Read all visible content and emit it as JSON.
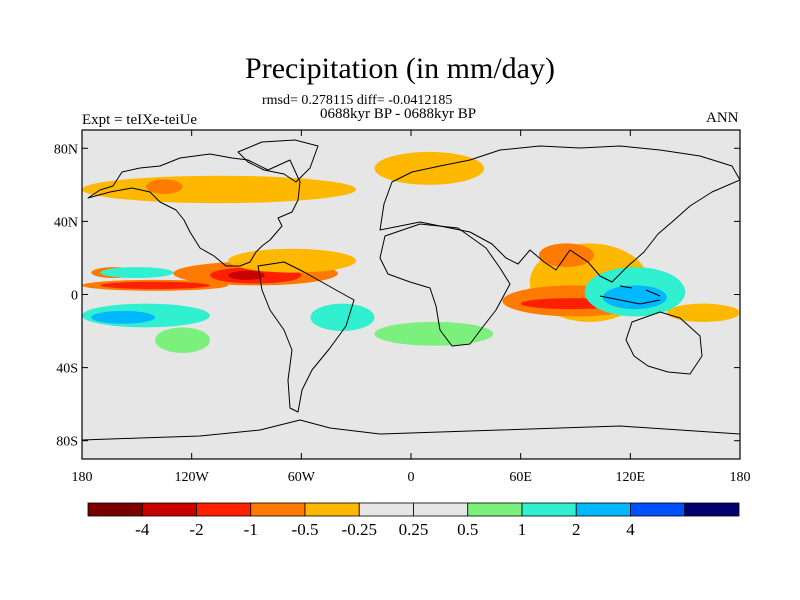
{
  "header": {
    "title": "Precipitation (in mm/day)",
    "stats": "rmsd= 0.278115 diff= -0.0412185",
    "period": "0688kyr BP - 0688kyr BP",
    "experiment": "Expt = teIXe-teiUe",
    "season": "ANN"
  },
  "axes": {
    "lat_ticks": [
      "80N",
      "40N",
      "0",
      "40S",
      "80S"
    ],
    "lon_ticks": [
      "180",
      "120W",
      "60W",
      "0",
      "60E",
      "120E",
      "180"
    ]
  },
  "colorbar": {
    "colors": [
      "#7a0000",
      "#c80000",
      "#ff2000",
      "#ff7a00",
      "#ffb800",
      "#e6e6e6",
      "#e6e6e6",
      "#7cf07c",
      "#30f0d0",
      "#00b8ff",
      "#0050ff",
      "#00006e"
    ],
    "labels": [
      "-4",
      "-2",
      "-1",
      "-0.5",
      "-0.25",
      "0.25",
      "0.5",
      "1",
      "2",
      "4"
    ]
  },
  "chart_data": {
    "type": "heatmap",
    "title": "Precipitation (in mm/day)",
    "variable": "precipitation difference",
    "units": "mm/day",
    "season": "ANN",
    "levels": [
      -4,
      -2,
      -1,
      -0.5,
      -0.25,
      0.25,
      0.5,
      1,
      2,
      4
    ],
    "lon_range": [
      -180,
      180
    ],
    "lat_range": [
      -90,
      90
    ],
    "regions": [
      {
        "sign": "neg",
        "level": -0.5,
        "lon": [
          -175,
          -150
        ],
        "lat": [
          9,
          15
        ]
      },
      {
        "sign": "neg",
        "level": -0.5,
        "lon": [
          -130,
          -40
        ],
        "lat": [
          5,
          18
        ]
      },
      {
        "sign": "neg",
        "level": -1,
        "lon": [
          -110,
          -60
        ],
        "lat": [
          6,
          15
        ]
      },
      {
        "sign": "neg",
        "level": -2,
        "lon": [
          -100,
          -80
        ],
        "lat": [
          8,
          13
        ]
      },
      {
        "sign": "neg",
        "level": -0.5,
        "lon": [
          -180,
          -100
        ],
        "lat": [
          2,
          8
        ]
      },
      {
        "sign": "neg",
        "level": -1,
        "lon": [
          -170,
          -110
        ],
        "lat": [
          3,
          7
        ]
      },
      {
        "sign": "neg",
        "level": -0.25,
        "lon": [
          -100,
          -30
        ],
        "lat": [
          12,
          25
        ]
      },
      {
        "sign": "neg",
        "level": -0.25,
        "lon": [
          -180,
          -30
        ],
        "lat": [
          50,
          65
        ]
      },
      {
        "sign": "neg",
        "level": -0.5,
        "lon": [
          -145,
          -125
        ],
        "lat": [
          55,
          63
        ]
      },
      {
        "sign": "neg",
        "level": -0.25,
        "lon": [
          -20,
          40
        ],
        "lat": [
          60,
          78
        ]
      },
      {
        "sign": "neg",
        "level": -0.25,
        "lon": [
          65,
          130
        ],
        "lat": [
          -15,
          28
        ]
      },
      {
        "sign": "neg",
        "level": -0.5,
        "lon": [
          50,
          130
        ],
        "lat": [
          -12,
          5
        ]
      },
      {
        "sign": "neg",
        "level": -1,
        "lon": [
          60,
          115
        ],
        "lat": [
          -8,
          -2
        ]
      },
      {
        "sign": "neg",
        "level": -0.5,
        "lon": [
          70,
          100
        ],
        "lat": [
          15,
          28
        ]
      },
      {
        "sign": "neg",
        "level": -0.25,
        "lon": [
          140,
          180
        ],
        "lat": [
          -15,
          -5
        ]
      },
      {
        "sign": "pos",
        "level": 0.5,
        "lon": [
          -180,
          -110
        ],
        "lat": [
          -18,
          -5
        ]
      },
      {
        "sign": "pos",
        "level": 1,
        "lon": [
          -175,
          -140
        ],
        "lat": [
          -16,
          -9
        ]
      },
      {
        "sign": "pos",
        "level": 0.25,
        "lon": [
          -140,
          -110
        ],
        "lat": [
          -32,
          -18
        ]
      },
      {
        "sign": "pos",
        "level": 0.5,
        "lon": [
          -170,
          -130
        ],
        "lat": [
          9,
          15
        ]
      },
      {
        "sign": "pos",
        "level": 0.5,
        "lon": [
          -55,
          -20
        ],
        "lat": [
          -20,
          -5
        ]
      },
      {
        "sign": "pos",
        "level": 0.25,
        "lon": [
          -20,
          45
        ],
        "lat": [
          -28,
          -15
        ]
      },
      {
        "sign": "pos",
        "level": 0.5,
        "lon": [
          95,
          150
        ],
        "lat": [
          -12,
          15
        ]
      },
      {
        "sign": "pos",
        "level": 1,
        "lon": [
          105,
          140
        ],
        "lat": [
          -8,
          5
        ]
      }
    ]
  }
}
